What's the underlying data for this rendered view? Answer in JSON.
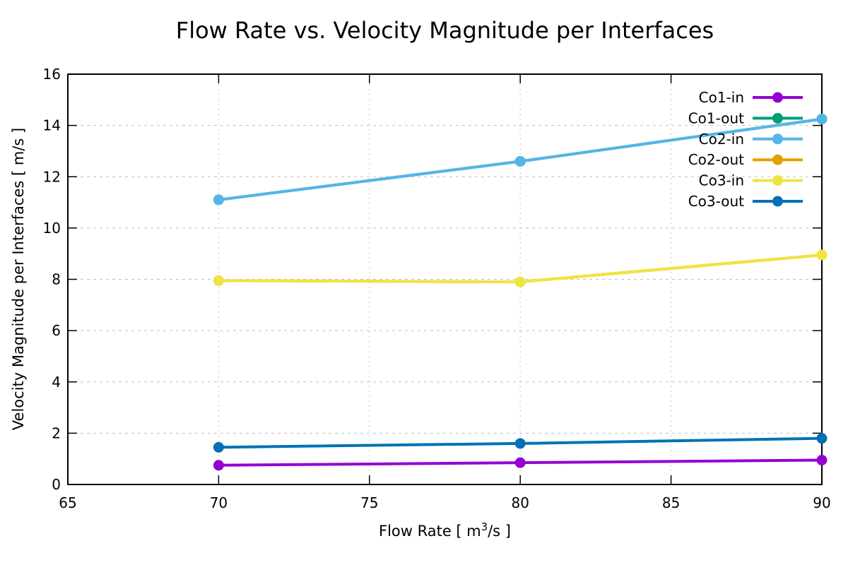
{
  "figure": {
    "background": "#ffffff",
    "border_color": "#000000",
    "grid_color": "#c0c0c0",
    "text_color": "#000000"
  },
  "chart_data": {
    "type": "line",
    "title": "Flow Rate vs. Velocity Magnitude per Interfaces",
    "xlabel": {
      "prefix": "Flow Rate [ m",
      "sup": "3",
      "suffix": "/s ]"
    },
    "ylabel": "Velocity Magnitude per Interfaces [ m/s ]",
    "x": [
      70,
      80,
      90
    ],
    "xlim": [
      65,
      90
    ],
    "ylim": [
      0,
      16
    ],
    "xticks": [
      65,
      70,
      75,
      80,
      85,
      90
    ],
    "yticks": [
      0,
      2,
      4,
      6,
      8,
      10,
      12,
      14,
      16
    ],
    "grid": "dashed",
    "legend_position": "inside top-right",
    "marker": "filled-circle",
    "series": [
      {
        "name": "Co1-in",
        "color": "#9400d3",
        "values": [
          0.75,
          0.85,
          0.95
        ]
      },
      {
        "name": "Co1-out",
        "color": "#009e73",
        "values": [
          11.1,
          12.6,
          14.25
        ],
        "occluded_by": "Co2-in"
      },
      {
        "name": "Co2-in",
        "color": "#56b4e9",
        "values": [
          11.1,
          12.6,
          14.25
        ]
      },
      {
        "name": "Co2-out",
        "color": "#e69f00",
        "values": [
          7.95,
          7.9,
          8.95
        ],
        "occluded_by": "Co3-in"
      },
      {
        "name": "Co3-in",
        "color": "#f0e442",
        "values": [
          7.95,
          7.9,
          8.95
        ]
      },
      {
        "name": "Co3-out",
        "color": "#0072b2",
        "values": [
          1.45,
          1.6,
          1.8
        ]
      }
    ]
  }
}
